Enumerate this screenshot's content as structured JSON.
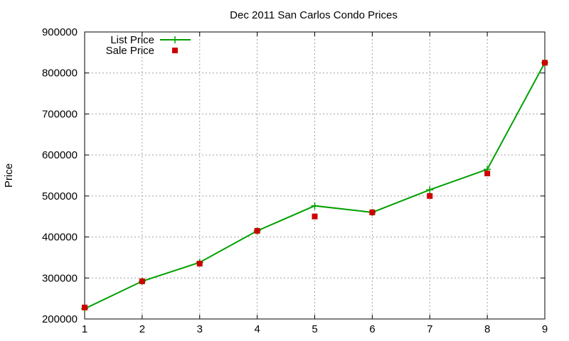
{
  "chart_data": {
    "type": "line",
    "title": "Dec 2011 San Carlos Condo Prices",
    "xlabel": "",
    "ylabel": "Price",
    "xlim": [
      1,
      9
    ],
    "ylim": [
      200000,
      900000
    ],
    "x_ticks": [
      "1",
      "2",
      "3",
      "4",
      "5",
      "6",
      "7",
      "8",
      "9"
    ],
    "y_ticks": [
      "200000",
      "300000",
      "400000",
      "500000",
      "600000",
      "700000",
      "800000",
      "900000"
    ],
    "grid": true,
    "legend_position": "top-left",
    "series": [
      {
        "name": "List Price",
        "style": "line-with-plus-markers",
        "color": "#00a000",
        "x": [
          1,
          2,
          3,
          4,
          5,
          6,
          7,
          8,
          9
        ],
        "y": [
          225000,
          292000,
          338000,
          415000,
          476000,
          460000,
          515000,
          565000,
          825000
        ]
      },
      {
        "name": "Sale Price",
        "style": "square-markers",
        "color": "#cc0000",
        "x": [
          1,
          2,
          3,
          4,
          5,
          6,
          7,
          8,
          9
        ],
        "y": [
          228000,
          292000,
          335000,
          415000,
          450000,
          460000,
          500000,
          555000,
          825000
        ]
      }
    ]
  }
}
